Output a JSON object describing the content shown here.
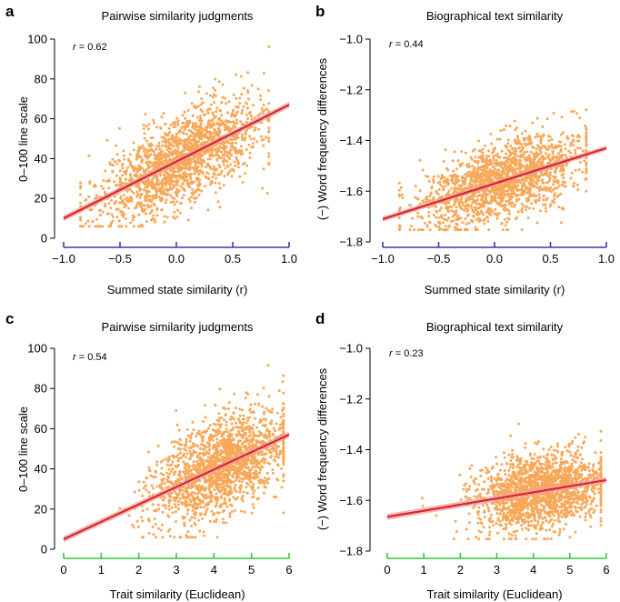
{
  "colors": {
    "points": "#f7a858",
    "fit_line": "#d7282a",
    "fit_band": "#f2a0a0",
    "axis_state": "#3b3ba8",
    "axis_trait": "#3cc43c",
    "axis": "#000000"
  },
  "chart_data": [
    {
      "panel": "a",
      "type": "scatter",
      "title": "Pairwise similarity judgments",
      "xlabel": "Summed state similarity (r)",
      "ylabel": "0–100 line scale",
      "annotation": "r = 0.62",
      "r_label": "r",
      "r_value": " = 0.62",
      "xlim": [
        -1.0,
        1.0
      ],
      "ylim": [
        0,
        100
      ],
      "xticks": [
        -1.0,
        -0.5,
        0.0,
        0.5,
        1.0
      ],
      "xtick_labels": [
        "−1.0",
        "−0.5",
        "0.0",
        "0.5",
        "1.0"
      ],
      "yticks": [
        0,
        20,
        40,
        60,
        80,
        100
      ],
      "ytick_labels": [
        "0",
        "20",
        "40",
        "60",
        "80",
        "100"
      ],
      "fit": {
        "x": [
          -1.0,
          1.0
        ],
        "y": [
          10,
          67
        ],
        "band": 1.5
      },
      "points_summary": {
        "n": 1800,
        "x_center": 0.05,
        "x_spread": 0.36,
        "x_range": [
          -0.85,
          0.82
        ],
        "slope": 28.5,
        "intercept": 38,
        "noise": 11
      }
    },
    {
      "panel": "b",
      "type": "scatter",
      "title": "Biographical text similarity",
      "xlabel": "Summed state similarity (r)",
      "ylabel": "(−) Word frequency differences",
      "annotation": "r = 0.44",
      "r_label": "r",
      "r_value": " = 0.44",
      "xlim": [
        -1.0,
        1.0
      ],
      "ylim": [
        -1.8,
        -1.0
      ],
      "xticks": [
        -1.0,
        -0.5,
        0.0,
        0.5,
        1.0
      ],
      "xtick_labels": [
        "−1.0",
        "−0.5",
        "0.0",
        "0.5",
        "1.0"
      ],
      "yticks": [
        -1.8,
        -1.6,
        -1.4,
        -1.2,
        -1.0
      ],
      "ytick_labels": [
        "−1.8",
        "−1.6",
        "−1.4",
        "−1.2",
        "−1.0"
      ],
      "fit": {
        "x": [
          -1.0,
          1.0
        ],
        "y": [
          -1.71,
          -1.43
        ],
        "band": 0.01
      },
      "points_summary": {
        "n": 1800,
        "x_center": 0.05,
        "x_spread": 0.36,
        "x_range": [
          -0.85,
          0.82
        ],
        "slope": 0.14,
        "intercept": -1.57,
        "noise": 0.075
      }
    },
    {
      "panel": "c",
      "type": "scatter",
      "title": "Pairwise similarity judgments",
      "xlabel": "Trait similarity (Euclidean)",
      "ylabel": "0–100 line scale",
      "annotation": "r = 0.54",
      "r_label": "r",
      "r_value": " = 0.54",
      "xlim": [
        0,
        6
      ],
      "ylim": [
        0,
        100
      ],
      "xticks": [
        0,
        1,
        2,
        3,
        4,
        5,
        6
      ],
      "xtick_labels": [
        "0",
        "1",
        "2",
        "3",
        "4",
        "5",
        "6"
      ],
      "yticks": [
        0,
        20,
        40,
        60,
        80,
        100
      ],
      "ytick_labels": [
        "0",
        "20",
        "40",
        "60",
        "80",
        "100"
      ],
      "fit": {
        "x": [
          0,
          6
        ],
        "y": [
          5,
          57
        ],
        "band": 1.5
      },
      "points_summary": {
        "n": 1800,
        "x_center": 4.2,
        "x_spread": 0.9,
        "x_range": [
          0.4,
          5.85
        ],
        "slope": 8.67,
        "intercept": 5,
        "noise": 12
      }
    },
    {
      "panel": "d",
      "type": "scatter",
      "title": "Biographical text similarity",
      "xlabel": "Trait similarity (Euclidean)",
      "ylabel": "(−) Word frequency differences",
      "annotation": "r = 0.23",
      "r_label": "r",
      "r_value": " = 0.23",
      "xlim": [
        0,
        6
      ],
      "ylim": [
        -1.8,
        -1.0
      ],
      "xticks": [
        0,
        1,
        2,
        3,
        4,
        5,
        6
      ],
      "xtick_labels": [
        "0",
        "1",
        "2",
        "3",
        "4",
        "5",
        "6"
      ],
      "yticks": [
        -1.8,
        -1.6,
        -1.4,
        -1.2,
        -1.0
      ],
      "ytick_labels": [
        "−1.8",
        "−1.6",
        "−1.4",
        "−1.2",
        "−1.0"
      ],
      "fit": {
        "x": [
          0,
          6
        ],
        "y": [
          -1.665,
          -1.52
        ],
        "band": 0.012
      },
      "points_summary": {
        "n": 1800,
        "x_center": 4.2,
        "x_spread": 0.9,
        "x_range": [
          0.4,
          5.85
        ],
        "slope": 0.024,
        "intercept": -1.665,
        "noise": 0.075
      }
    }
  ]
}
